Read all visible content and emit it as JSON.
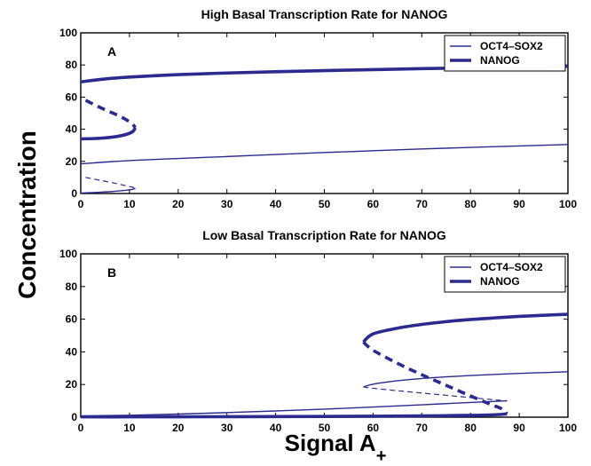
{
  "figure": {
    "ylabel": "Concentration",
    "xlabel_main": "Signal A",
    "xlabel_sub": "+"
  },
  "colors": {
    "curve": "#2b2b8f",
    "axes": "#000000"
  },
  "chart_data": [
    {
      "type": "line",
      "panel_label": "A",
      "title": "High Basal Transcription Rate for NANOG",
      "xlabel": "",
      "ylabel": "",
      "xlim": [
        0,
        100
      ],
      "ylim": [
        0,
        100
      ],
      "xticks": [
        "0",
        "10",
        "20",
        "30",
        "40",
        "50",
        "60",
        "70",
        "80",
        "90",
        "100"
      ],
      "yticks": [
        "0",
        "20",
        "40",
        "60",
        "80",
        "100"
      ],
      "grid": false,
      "legend": {
        "placement": "top-right",
        "entries": [
          "OCT4–SOX2",
          "NANOG"
        ]
      },
      "series": [
        {
          "name": "OCT4–SOX2",
          "branch": "stable-upper",
          "style": "solid-thin",
          "x": [
            0,
            10,
            20,
            30,
            40,
            50,
            60,
            70,
            80,
            90,
            100
          ],
          "y": [
            18.5,
            20.5,
            21.8,
            23,
            24.3,
            25.5,
            26.6,
            27.7,
            28.7,
            29.6,
            30.5
          ]
        },
        {
          "name": "OCT4–SOX2",
          "branch": "unstable",
          "style": "dashed-thin",
          "x": [
            1,
            4,
            7,
            9,
            10.5,
            11.2
          ],
          "y": [
            10,
            8.2,
            6.4,
            5,
            4,
            3.2
          ]
        },
        {
          "name": "OCT4–SOX2",
          "branch": "stable-lower",
          "style": "solid-thin",
          "x": [
            0,
            4,
            8,
            10.5,
            11.2
          ],
          "y": [
            0.3,
            0.8,
            1.6,
            2.5,
            3.2
          ]
        },
        {
          "name": "NANOG",
          "branch": "stable-upper",
          "style": "solid-thick",
          "x": [
            0,
            5,
            10,
            20,
            30,
            40,
            50,
            60,
            70,
            80,
            90,
            100
          ],
          "y": [
            69.5,
            71.3,
            72.5,
            74,
            75,
            75.8,
            76.5,
            77.1,
            77.7,
            78.2,
            78.7,
            79.2
          ]
        },
        {
          "name": "NANOG",
          "branch": "unstable",
          "style": "dashed-thick",
          "x": [
            1,
            4,
            7,
            9,
            10.5,
            11.2
          ],
          "y": [
            58,
            53.5,
            49.5,
            46.5,
            43.5,
            41
          ]
        },
        {
          "name": "NANOG",
          "branch": "stable-lower",
          "style": "solid-thick",
          "x": [
            0,
            4,
            8,
            10.5,
            11.2
          ],
          "y": [
            34,
            34.4,
            35.8,
            38.2,
            41
          ]
        }
      ]
    },
    {
      "type": "line",
      "panel_label": "B",
      "title": "Low Basal Transcription Rate for NANOG",
      "xlabel": "",
      "ylabel": "",
      "xlim": [
        0,
        100
      ],
      "ylim": [
        0,
        100
      ],
      "xticks": [
        "0",
        "10",
        "20",
        "30",
        "40",
        "50",
        "60",
        "70",
        "80",
        "90",
        "100"
      ],
      "yticks": [
        "0",
        "20",
        "40",
        "60",
        "80",
        "100"
      ],
      "grid": false,
      "legend": {
        "placement": "top-right",
        "entries": [
          "OCT4–SOX2",
          "NANOG"
        ]
      },
      "series": [
        {
          "name": "OCT4–SOX2",
          "branch": "stable-upper",
          "style": "solid-thin",
          "x": [
            58,
            60,
            65,
            70,
            75,
            80,
            85,
            90,
            95,
            100
          ],
          "y": [
            18.5,
            20.2,
            22.3,
            23.7,
            24.7,
            25.5,
            26.2,
            26.8,
            27.3,
            27.8
          ]
        },
        {
          "name": "OCT4–SOX2",
          "branch": "unstable",
          "style": "dashed-thin",
          "x": [
            58,
            60,
            65,
            70,
            75,
            80,
            85,
            87.5
          ],
          "y": [
            18.5,
            17.7,
            16.2,
            14.8,
            13.4,
            12,
            10.6,
            10
          ]
        },
        {
          "name": "OCT4–SOX2",
          "branch": "stable-lower",
          "style": "solid-thin",
          "x": [
            0,
            10,
            20,
            30,
            40,
            50,
            60,
            70,
            80,
            87.5
          ],
          "y": [
            0.8,
            1.2,
            1.9,
            2.8,
            3.8,
            4.9,
            6.2,
            7.6,
            9,
            10
          ]
        },
        {
          "name": "NANOG",
          "branch": "stable-upper",
          "style": "solid-thick",
          "x": [
            58,
            60,
            65,
            70,
            75,
            80,
            85,
            90,
            95,
            100
          ],
          "y": [
            46,
            51,
            54.5,
            56.8,
            58.5,
            59.8,
            60.8,
            61.7,
            62.4,
            63
          ]
        },
        {
          "name": "NANOG",
          "branch": "unstable",
          "style": "dashed-thick",
          "x": [
            58,
            60,
            65,
            70,
            75,
            80,
            84,
            86.5,
            87.5
          ],
          "y": [
            46,
            41,
            33,
            26,
            19.5,
            13,
            8,
            5,
            2
          ]
        },
        {
          "name": "NANOG",
          "branch": "stable-lower",
          "style": "solid-thick",
          "x": [
            0,
            10,
            20,
            30,
            40,
            50,
            60,
            70,
            80,
            85,
            87.5
          ],
          "y": [
            0.2,
            0.2,
            0.25,
            0.3,
            0.35,
            0.45,
            0.6,
            0.8,
            1.1,
            1.5,
            2
          ]
        }
      ]
    }
  ]
}
